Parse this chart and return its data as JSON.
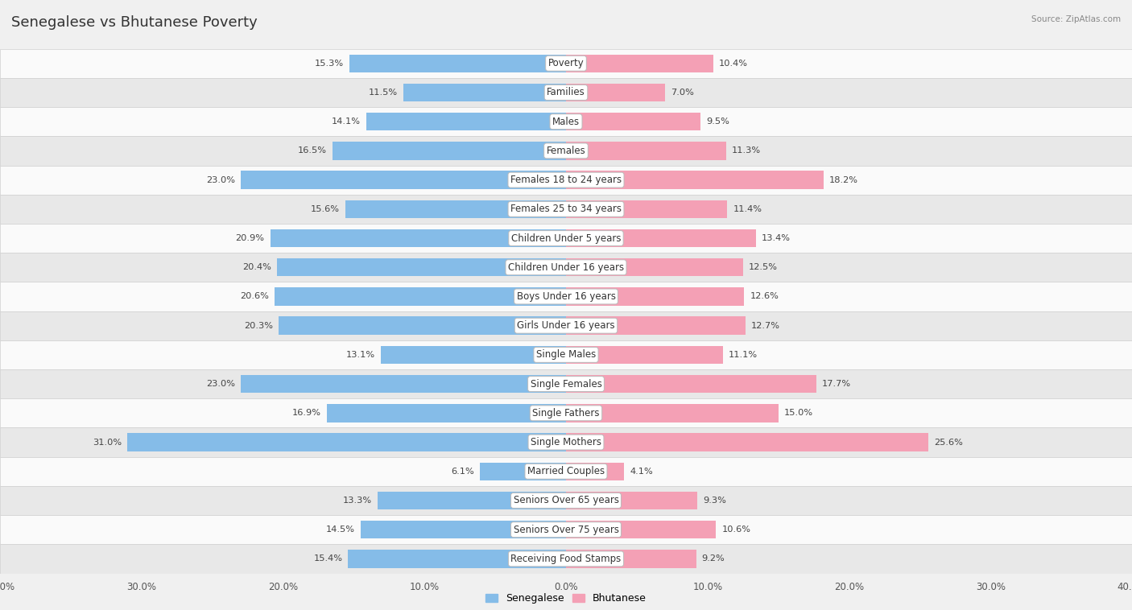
{
  "title": "Senegalese vs Bhutanese Poverty",
  "source": "Source: ZipAtlas.com",
  "categories": [
    "Poverty",
    "Families",
    "Males",
    "Females",
    "Females 18 to 24 years",
    "Females 25 to 34 years",
    "Children Under 5 years",
    "Children Under 16 years",
    "Boys Under 16 years",
    "Girls Under 16 years",
    "Single Males",
    "Single Females",
    "Single Fathers",
    "Single Mothers",
    "Married Couples",
    "Seniors Over 65 years",
    "Seniors Over 75 years",
    "Receiving Food Stamps"
  ],
  "senegalese": [
    15.3,
    11.5,
    14.1,
    16.5,
    23.0,
    15.6,
    20.9,
    20.4,
    20.6,
    20.3,
    13.1,
    23.0,
    16.9,
    31.0,
    6.1,
    13.3,
    14.5,
    15.4
  ],
  "bhutanese": [
    10.4,
    7.0,
    9.5,
    11.3,
    18.2,
    11.4,
    13.4,
    12.5,
    12.6,
    12.7,
    11.1,
    17.7,
    15.0,
    25.6,
    4.1,
    9.3,
    10.6,
    9.2
  ],
  "max_val": 40.0,
  "senegalese_color": "#85BCE8",
  "bhutanese_color": "#F4A0B5",
  "senegalese_label": "Senegalese",
  "bhutanese_label": "Bhutanese",
  "bg_color": "#F0F0F0",
  "row_bg_light": "#FAFAFA",
  "row_bg_dark": "#E8E8E8",
  "bar_height": 0.62,
  "title_fontsize": 13,
  "label_fontsize": 8.5,
  "value_fontsize": 8.2,
  "axis_label_fontsize": 8.5
}
